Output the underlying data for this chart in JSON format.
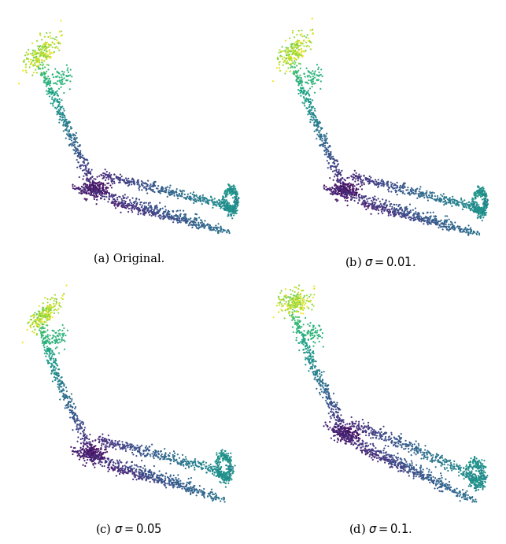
{
  "n_points": 2048,
  "sigma_values": [
    0.0,
    0.01,
    0.05,
    0.1
  ],
  "captions": [
    "(a) Original.",
    "(b) $\\sigma = 0.01$.",
    "(c) $\\sigma = 0.05$",
    "(d) $\\sigma = 0.1$."
  ],
  "colormap": "viridis",
  "point_size": 2.5,
  "background_color": "#ffffff",
  "seed": 17
}
